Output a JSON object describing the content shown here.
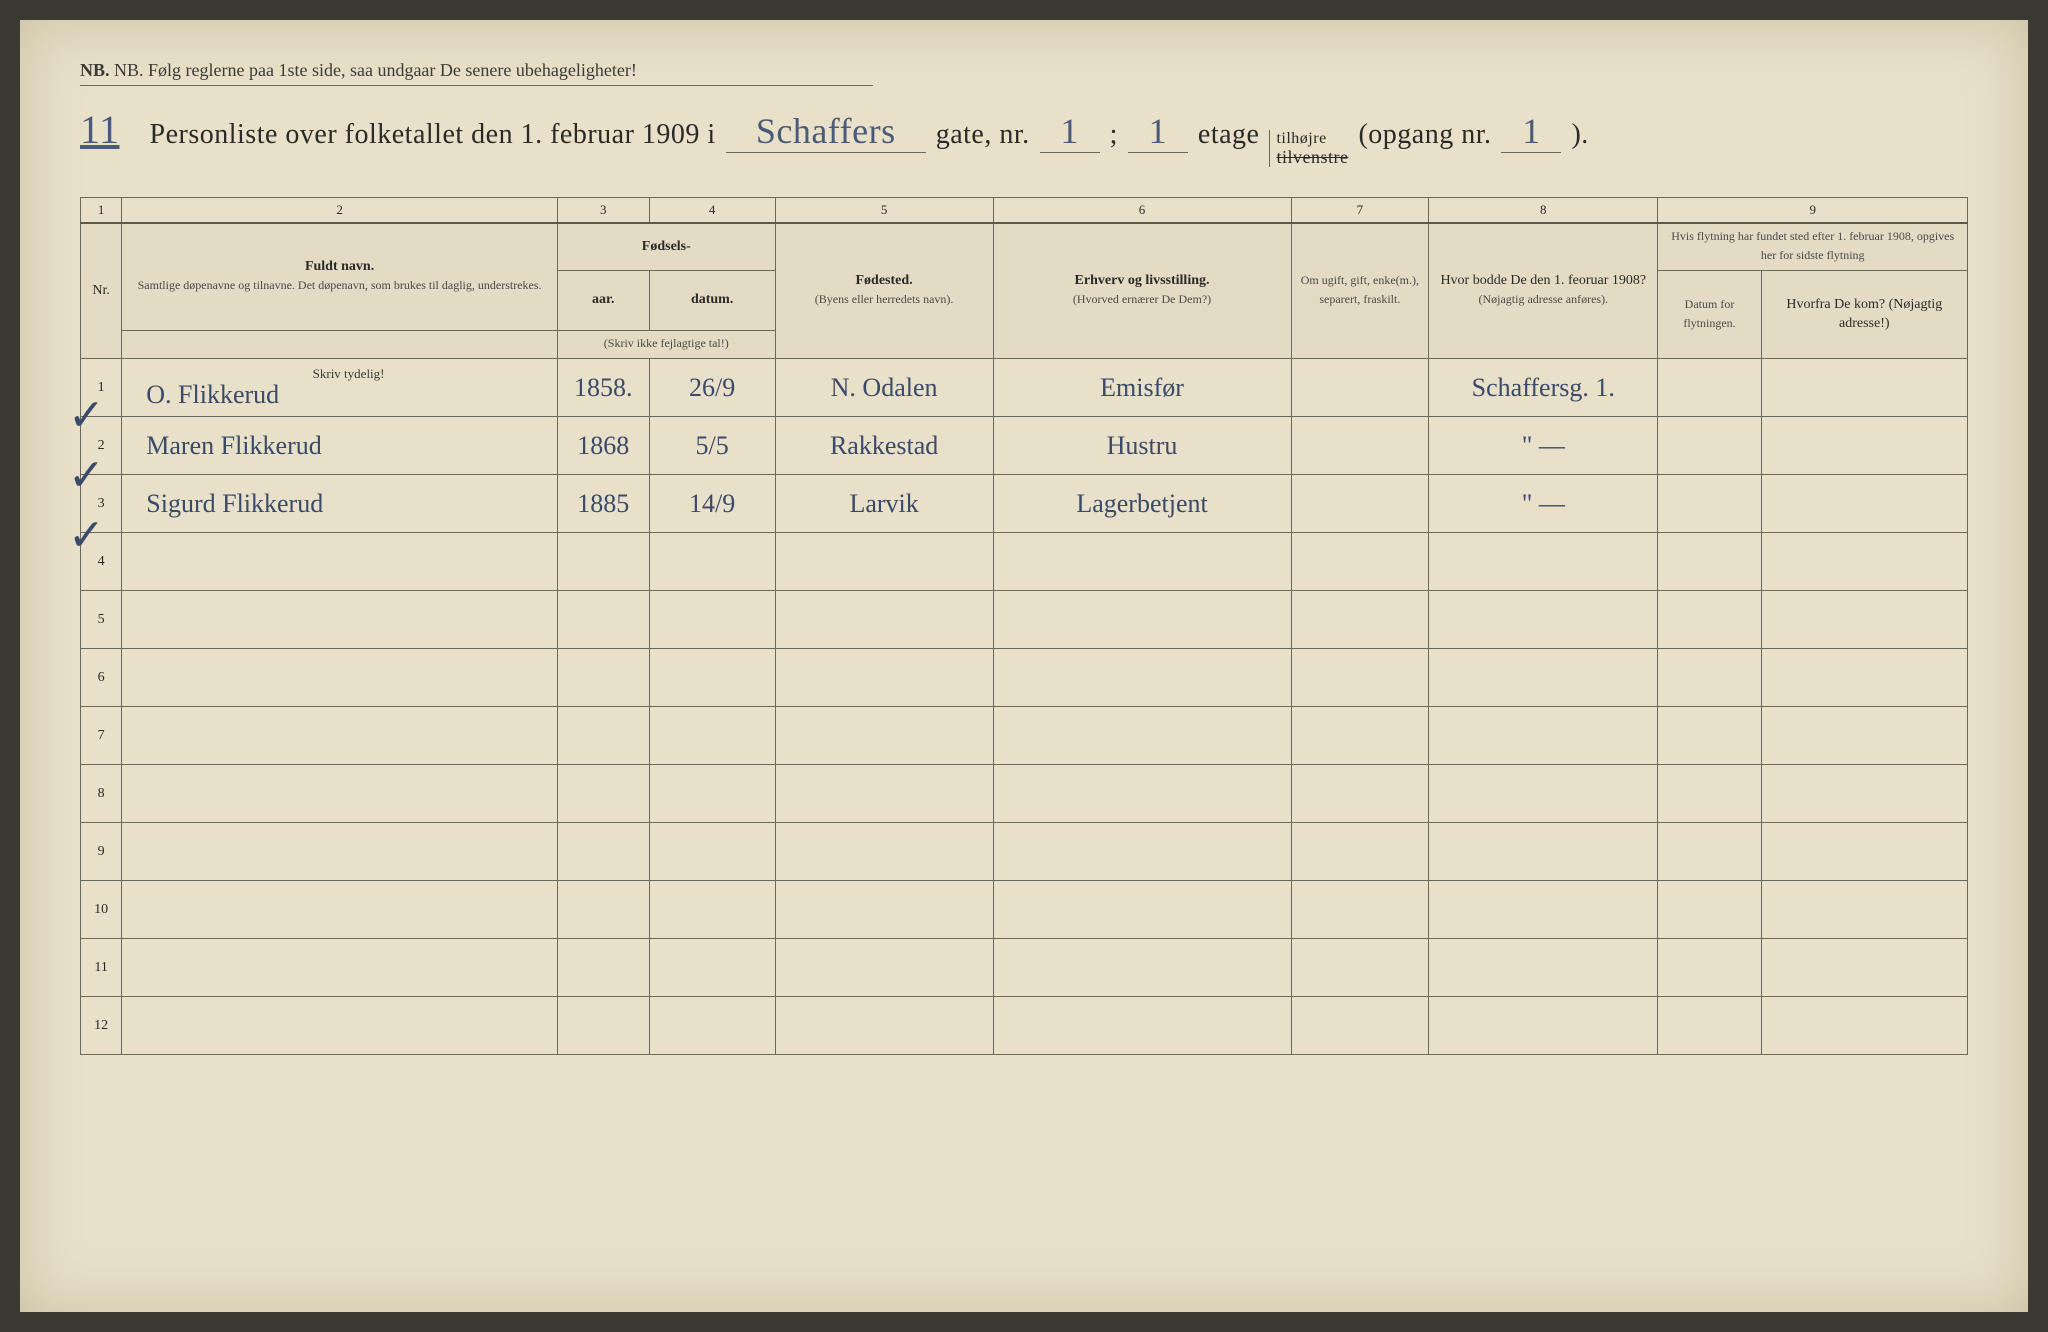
{
  "nb_text": "NB.  Følg reglerne paa 1ste side, saa undgaar De senere ubehageligheter!",
  "title": {
    "page_num": "11",
    "pre": "Personliste over folketallet den 1. februar 1909 i",
    "street": "Schaffers",
    "gate_label": "gate, nr.",
    "gate_nr": "1",
    "semicolon": ";",
    "floor": "1",
    "etage_label": "etage",
    "side_top": "tilhøjre",
    "side_bottom": "tilvenstre",
    "opgang_label": "(opgang  nr.",
    "opgang_nr": "1",
    "close": ")."
  },
  "colnums": [
    "1",
    "2",
    "3",
    "4",
    "5",
    "6",
    "7",
    "8",
    "9"
  ],
  "headers": {
    "nr": "Nr.",
    "name": "Fuldt navn.",
    "name_sub": "Samtlige døpenavne og tilnavne.  Det døpenavn, som brukes til daglig, understrekes.",
    "fodsels": "Fødsels-",
    "aar": "aar.",
    "datum": "datum.",
    "fodsels_sub": "(Skriv ikke fejlagtige tal!)",
    "fodested": "Fødested.",
    "fodested_sub": "(Byens eller herredets navn).",
    "erhverv": "Erhverv og livsstilling.",
    "erhverv_sub": "(Hvorved ernærer De Dem?)",
    "civil": "Om ugift, gift, enke(m.), separert, fraskilt.",
    "bodde": "Hvor bodde De den 1. feoruar 1908?",
    "bodde_sub": "(Nøjagtig adresse anføres).",
    "flyt_top": "Hvis flytning har fundet sted efter 1. februar 1908, opgives her for sidste flytning",
    "flyt_dat": "Datum for flytningen.",
    "flyt_fra": "Hvorfra De kom? (Nøjagtig adresse!)",
    "skriv_tydelig": "Skriv tydelig!"
  },
  "rows": [
    {
      "nr": "1",
      "name": "O. Flikkerud",
      "aar": "1858.",
      "datum": "26/9",
      "fodested": "N. Odalen",
      "erhverv": "Emisfør",
      "civil": "",
      "bodde": "Schaffersg. 1.",
      "flydat": "",
      "flyfra": ""
    },
    {
      "nr": "2",
      "name": "Maren Flikkerud",
      "aar": "1868",
      "datum": "5/5",
      "fodested": "Rakkestad",
      "erhverv": "Hustru",
      "civil": "",
      "bodde": "\"  —",
      "flydat": "",
      "flyfra": ""
    },
    {
      "nr": "3",
      "name": "Sigurd Flikkerud",
      "aar": "1885",
      "datum": "14/9",
      "fodested": "Larvik",
      "erhverv": "Lagerbetjent",
      "civil": "",
      "bodde": "\"  —",
      "flydat": "",
      "flyfra": ""
    },
    {
      "nr": "4"
    },
    {
      "nr": "5"
    },
    {
      "nr": "6"
    },
    {
      "nr": "7"
    },
    {
      "nr": "8"
    },
    {
      "nr": "9"
    },
    {
      "nr": "10"
    },
    {
      "nr": "11"
    },
    {
      "nr": "12"
    }
  ],
  "col_widths": {
    "nr": "36px",
    "name": "380px",
    "aar": "80px",
    "datum": "110px",
    "fodested": "190px",
    "erhverv": "260px",
    "civil": "120px",
    "bodde": "200px",
    "flydat": "90px",
    "flyfra": "180px"
  },
  "colors": {
    "paper": "#e8e0c8",
    "ink_print": "#2a2a28",
    "ink_hand": "#3a4a6a",
    "border": "#6a6a5a"
  }
}
